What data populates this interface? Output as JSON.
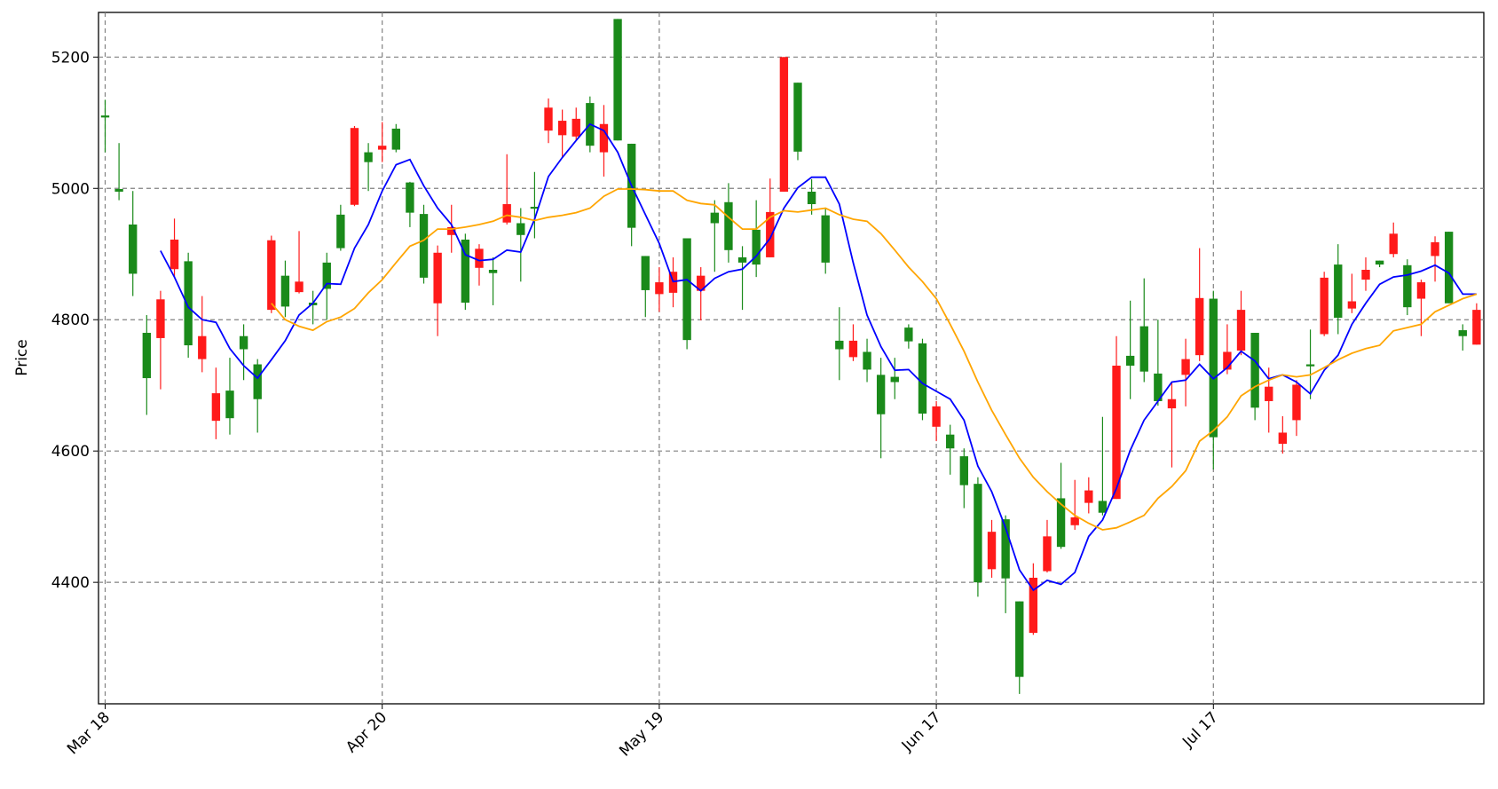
{
  "chart_data": {
    "type": "candlestick",
    "ylabel": "Price",
    "ylim": [
      4215,
      5268
    ],
    "yticks": [
      4400,
      4600,
      4800,
      5000,
      5200
    ],
    "xlim": [
      -0.48,
      99.52
    ],
    "xticks": [
      {
        "value": 0,
        "label": "Mar 18"
      },
      {
        "value": 20,
        "label": "Apr 20"
      },
      {
        "value": 40,
        "label": "May 19"
      },
      {
        "value": 60,
        "label": "Jun 17"
      },
      {
        "value": 80,
        "label": "Jul 17"
      }
    ],
    "grid": true,
    "up_color": "#1a8a1a",
    "down_color": "#ff1a1a",
    "open": [
      5108,
      4995,
      4870,
      4711,
      4831,
      4922,
      4761,
      4775,
      4688,
      4650,
      4755,
      4679,
      4921,
      4820,
      4858,
      4822,
      4847,
      4909,
      5092,
      5040,
      5065,
      5059,
      4963,
      4864,
      4902,
      4941,
      4826,
      4908,
      4871,
      4976,
      4929,
      4969,
      5123,
      5103,
      5106,
      5065,
      5098,
      5073,
      4940,
      4845,
      4857,
      4873,
      4769,
      4867,
      4947,
      4906,
      4887,
      4884,
      4964,
      5200,
      5056,
      4976,
      4887,
      4755,
      4768,
      4724,
      4656,
      4705,
      4767,
      4657,
      4668,
      4604,
      4548,
      4400,
      4477,
      4406,
      4256,
      4407,
      4470,
      4454,
      4499,
      4540,
      4506,
      4730,
      4730,
      4721,
      4676,
      4679,
      4740,
      4833,
      4621,
      4751,
      4815,
      4666,
      4698,
      4628,
      4701,
      4729,
      4864,
      4803,
      4828,
      4876,
      4884,
      4931,
      4819,
      4857,
      4918,
      4825,
      4775,
      4815
    ],
    "high": [
      5135,
      5069,
      4996,
      4807,
      4844,
      4954,
      4902,
      4836,
      4727,
      4742,
      4793,
      4740,
      4928,
      4890,
      4935,
      4844,
      4902,
      4975,
      5095,
      5069,
      5101,
      5098,
      5010,
      4975,
      4913,
      4975,
      4931,
      4915,
      4895,
      5052,
      4970,
      5025,
      5137,
      5120,
      5123,
      5140,
      5127,
      5258,
      5068,
      4897,
      4880,
      4895,
      4924,
      4880,
      4982,
      5008,
      4912,
      4982,
      5015,
      5200,
      5161,
      5014,
      4970,
      4819,
      4793,
      4771,
      4742,
      4742,
      4793,
      4771,
      4676,
      4640,
      4604,
      4560,
      4495,
      4502,
      4371,
      4429,
      4495,
      4582,
      4556,
      4560,
      4652,
      4775,
      4829,
      4863,
      4800,
      4705,
      4771,
      4909,
      4844,
      4793,
      4844,
      4780,
      4727,
      4653,
      4708,
      4785,
      4873,
      4915,
      4870,
      4895,
      4890,
      4948,
      4892,
      4861,
      4927,
      4934,
      4793,
      4825
    ],
    "low": [
      5055,
      4982,
      4836,
      4655,
      4694,
      4865,
      4742,
      4720,
      4618,
      4625,
      4708,
      4628,
      4810,
      4804,
      4840,
      4793,
      4800,
      4905,
      4973,
      4996,
      5040,
      5055,
      4941,
      4855,
      4775,
      4902,
      4815,
      4852,
      4822,
      4945,
      4858,
      4924,
      5069,
      5047,
      5073,
      5055,
      5018,
      5073,
      4912,
      4804,
      4812,
      4819,
      4755,
      4799,
      4873,
      4887,
      4815,
      4865,
      4895,
      4995,
      5043,
      4960,
      4870,
      4708,
      4737,
      4705,
      4589,
      4679,
      4756,
      4647,
      4615,
      4564,
      4513,
      4378,
      4407,
      4353,
      4230,
      4320,
      4415,
      4451,
      4480,
      4505,
      4502,
      4527,
      4679,
      4705,
      4669,
      4575,
      4668,
      4737,
      4572,
      4717,
      4746,
      4647,
      4628,
      4596,
      4623,
      4679,
      4775,
      4778,
      4810,
      4844,
      4880,
      4895,
      4807,
      4775,
      4858,
      4825,
      4753,
      4762
    ],
    "close": [
      5111,
      4999,
      4945,
      4780,
      4772,
      4877,
      4889,
      4740,
      4646,
      4692,
      4775,
      4732,
      4815,
      4867,
      4842,
      4826,
      4887,
      4960,
      4975,
      5055,
      5059,
      5091,
      5009,
      4961,
      4825,
      4929,
      4922,
      4879,
      4876,
      4948,
      4947,
      4972,
      5088,
      5081,
      5079,
      5130,
      5055,
      5258,
      5068,
      4897,
      4839,
      4841,
      4924,
      4844,
      4963,
      4979,
      4895,
      4937,
      4895,
      4995,
      5161,
      4995,
      4959,
      4768,
      4743,
      4751,
      4716,
      4713,
      4788,
      4764,
      4637,
      4625,
      4592,
      4550,
      4420,
      4496,
      4371,
      4323,
      4417,
      4528,
      4487,
      4521,
      4524,
      4527,
      4745,
      4790,
      4718,
      4665,
      4716,
      4746,
      4832,
      4724,
      4753,
      4780,
      4676,
      4611,
      4647,
      4732,
      4778,
      4884,
      4817,
      4861,
      4890,
      4900,
      4883,
      4832,
      4897,
      4934,
      4784,
      4762
    ],
    "lines": [
      {
        "color": "#0000ff",
        "values": [
          null,
          null,
          null,
          null,
          4905,
          4865,
          4819,
          4800,
          4796,
          4756,
          4730,
          4711,
          4739,
          4768,
          4807,
          4825,
          4855,
          4854,
          4909,
          4945,
          4996,
          5036,
          5044,
          5004,
          4970,
          4945,
          4899,
          4890,
          4892,
          4906,
          4903,
          4953,
          5018,
          5047,
          5073,
          5098,
          5088,
          5055,
          5004,
          4960,
          4916,
          4858,
          4861,
          4844,
          4863,
          4873,
          4877,
          4897,
          4924,
          4970,
          5001,
          5017,
          5017,
          4976,
          4887,
          4807,
          4759,
          4723,
          4724,
          4703,
          4691,
          4679,
          4647,
          4577,
          4538,
          4483,
          4419,
          4388,
          4403,
          4397,
          4415,
          4470,
          4495,
          4543,
          4601,
          4647,
          4676,
          4705,
          4708,
          4732,
          4710,
          4727,
          4752,
          4737,
          4710,
          4716,
          4705,
          4687,
          4723,
          4746,
          4793,
          4825,
          4854,
          4865,
          4868,
          4874,
          4883,
          4871,
          4839,
          4839
        ]
      },
      {
        "color": "#ffa500",
        "values": [
          null,
          null,
          null,
          null,
          null,
          null,
          null,
          null,
          null,
          null,
          null,
          null,
          4825,
          4800,
          4790,
          4784,
          4797,
          4804,
          4817,
          4841,
          4861,
          4887,
          4912,
          4921,
          4938,
          4938,
          4941,
          4945,
          4950,
          4959,
          4956,
          4951,
          4956,
          4959,
          4963,
          4970,
          4988,
          4999,
          4999,
          4998,
          4996,
          4996,
          4982,
          4977,
          4975,
          4956,
          4938,
          4938,
          4956,
          4966,
          4964,
          4967,
          4970,
          4960,
          4953,
          4950,
          4931,
          4906,
          4880,
          4858,
          4832,
          4793,
          4752,
          4705,
          4662,
          4625,
          4589,
          4560,
          4538,
          4519,
          4502,
          4490,
          4480,
          4483,
          4492,
          4502,
          4528,
          4546,
          4570,
          4615,
          4631,
          4652,
          4684,
          4698,
          4708,
          4716,
          4713,
          4716,
          4727,
          4739,
          4749,
          4756,
          4761,
          4783,
          4788,
          4793,
          4812,
          4822,
          4832,
          4839
        ]
      }
    ]
  }
}
